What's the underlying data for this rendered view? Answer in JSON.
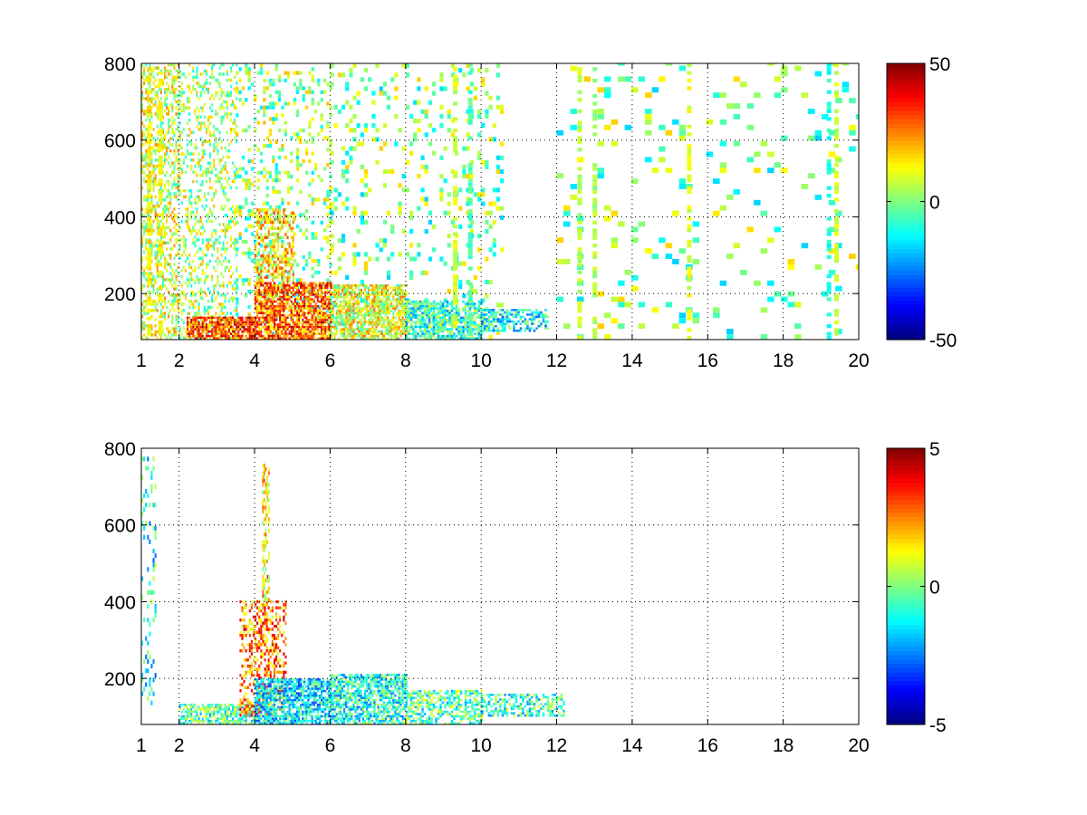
{
  "chart_data": [
    {
      "type": "heatmap",
      "title": "",
      "xlabel": "",
      "ylabel": "",
      "xlim": [
        1,
        20
      ],
      "ylim": [
        80,
        800
      ],
      "x_ticks": [
        1,
        2,
        4,
        6,
        8,
        10,
        12,
        14,
        16,
        18,
        20
      ],
      "x_tick_labels": [
        "1",
        "2",
        "4",
        "6",
        "8",
        "10",
        "12",
        "14",
        "16",
        "18",
        "20"
      ],
      "y_ticks": [
        200,
        400,
        600,
        800
      ],
      "y_tick_labels": [
        "200",
        "400",
        "600",
        "800"
      ],
      "grid": true,
      "colormap": "jet",
      "clim": [
        -50,
        50
      ],
      "colorbar_ticks": [
        50,
        0,
        -50
      ],
      "colorbar_tick_labels": [
        "50",
        "0",
        "-50"
      ],
      "colors": [
        "#00008f",
        "#0000ff",
        "#00ffff",
        "#ffff00",
        "#ff0000",
        "#800000"
      ],
      "regions": [
        {
          "x": [
            1.0,
            2.0
          ],
          "y": [
            80,
            800
          ],
          "value": 8,
          "density": 0.45,
          "x_step": 0.05,
          "y_step": 8
        },
        {
          "x": [
            2.0,
            3.5
          ],
          "y": [
            80,
            800
          ],
          "value": 4,
          "density": 0.32,
          "x_step": 0.05,
          "y_step": 8
        },
        {
          "x": [
            3.5,
            6.0
          ],
          "y": [
            80,
            800
          ],
          "value": 2,
          "density": 0.22,
          "x_step": 0.08,
          "y_step": 10
        },
        {
          "x": [
            6.0,
            10.5
          ],
          "y": [
            80,
            800
          ],
          "value": 0,
          "density": 0.16,
          "x_step": 0.1,
          "y_step": 12
        },
        {
          "x": [
            12.0,
            20.0
          ],
          "y": [
            80,
            800
          ],
          "value": 0,
          "density": 0.1,
          "x_step": 0.18,
          "y_step": 14
        },
        {
          "x": [
            2.2,
            4.0
          ],
          "y": [
            80,
            140
          ],
          "value": 30,
          "density": 0.85,
          "x_step": 0.05,
          "y_step": 6
        },
        {
          "x": [
            4.0,
            6.0
          ],
          "y": [
            80,
            230
          ],
          "value": 28,
          "density": 0.8,
          "x_step": 0.05,
          "y_step": 6
        },
        {
          "x": [
            4.0,
            5.0
          ],
          "y": [
            230,
            420
          ],
          "value": 15,
          "density": 0.55,
          "x_step": 0.05,
          "y_step": 8
        },
        {
          "x": [
            6.0,
            8.0
          ],
          "y": [
            80,
            220
          ],
          "value": 10,
          "density": 0.75,
          "x_step": 0.05,
          "y_step": 6
        },
        {
          "x": [
            8.0,
            10.0
          ],
          "y": [
            80,
            180
          ],
          "value": -8,
          "density": 0.7,
          "x_step": 0.06,
          "y_step": 6
        },
        {
          "x": [
            10.0,
            11.8
          ],
          "y": [
            100,
            160
          ],
          "value": -12,
          "density": 0.65,
          "x_step": 0.06,
          "y_step": 6
        }
      ],
      "columns": [
        {
          "x": 1.2,
          "value": 14
        },
        {
          "x": 1.5,
          "value": 12
        },
        {
          "x": 9.3,
          "value": 8
        },
        {
          "x": 9.7,
          "value": -5
        },
        {
          "x": 12.6,
          "value": 6
        },
        {
          "x": 13.0,
          "value": 4
        },
        {
          "x": 15.5,
          "value": 10
        },
        {
          "x": 19.2,
          "value": -10
        },
        {
          "x": 19.4,
          "value": 8
        }
      ]
    },
    {
      "type": "heatmap",
      "title": "",
      "xlabel": "",
      "ylabel": "",
      "xlim": [
        1,
        20
      ],
      "ylim": [
        80,
        800
      ],
      "x_ticks": [
        1,
        2,
        4,
        6,
        8,
        10,
        12,
        14,
        16,
        18,
        20
      ],
      "x_tick_labels": [
        "1",
        "2",
        "4",
        "6",
        "8",
        "10",
        "12",
        "14",
        "16",
        "18",
        "20"
      ],
      "y_ticks": [
        200,
        400,
        600,
        800
      ],
      "y_tick_labels": [
        "200",
        "400",
        "600",
        "800"
      ],
      "grid": true,
      "colormap": "jet",
      "clim": [
        -5,
        5
      ],
      "colorbar_ticks": [
        5,
        0,
        -5
      ],
      "colorbar_tick_labels": [
        "5",
        "0",
        "-5"
      ],
      "colors": [
        "#00008f",
        "#0000ff",
        "#00ffff",
        "#ffff00",
        "#ff0000",
        "#800000"
      ],
      "regions": [
        {
          "x": [
            2.0,
            4.0
          ],
          "y": [
            80,
            130
          ],
          "value": -0.5,
          "density": 0.7,
          "x_step": 0.05,
          "y_step": 6
        },
        {
          "x": [
            3.6,
            4.8
          ],
          "y": [
            100,
            400
          ],
          "value": 2.5,
          "density": 0.45,
          "x_step": 0.05,
          "y_step": 8
        },
        {
          "x": [
            4.0,
            6.0
          ],
          "y": [
            80,
            200
          ],
          "value": -1.5,
          "density": 0.8,
          "x_step": 0.05,
          "y_step": 6
        },
        {
          "x": [
            6.0,
            8.0
          ],
          "y": [
            80,
            210
          ],
          "value": -1.0,
          "density": 0.75,
          "x_step": 0.05,
          "y_step": 6
        },
        {
          "x": [
            8.0,
            10.0
          ],
          "y": [
            80,
            170
          ],
          "value": -0.5,
          "density": 0.6,
          "x_step": 0.06,
          "y_step": 6
        },
        {
          "x": [
            10.0,
            12.2
          ],
          "y": [
            100,
            160
          ],
          "value": -0.8,
          "density": 0.55,
          "x_step": 0.06,
          "y_step": 6
        },
        {
          "x": [
            4.2,
            4.4
          ],
          "y": [
            400,
            760
          ],
          "value": 1.5,
          "density": 0.5,
          "x_step": 0.04,
          "y_step": 10
        },
        {
          "x": [
            1.0,
            1.4
          ],
          "y": [
            130,
            770
          ],
          "value": -1.0,
          "density": 0.25,
          "x_step": 0.05,
          "y_step": 12
        }
      ],
      "columns": []
    }
  ]
}
